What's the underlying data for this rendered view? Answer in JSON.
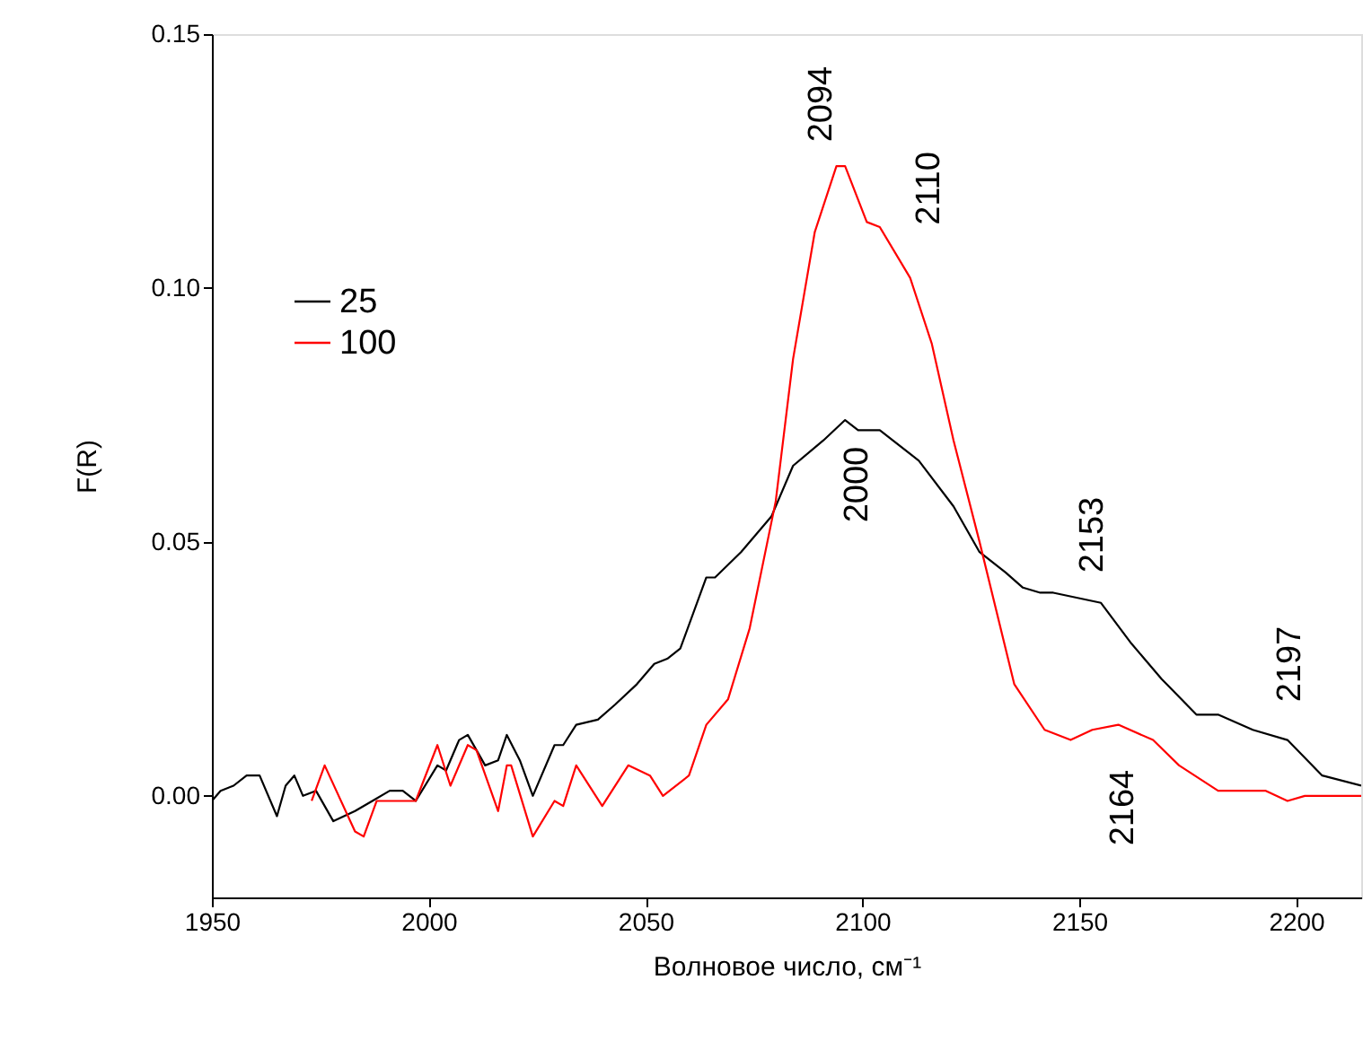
{
  "chart_data": {
    "type": "line",
    "xlabel": "Волновое число, см⁻¹",
    "ylabel": "F(R)",
    "xlim": [
      1950,
      2215
    ],
    "xticks": [
      1950,
      2000,
      2050,
      2100,
      2150,
      2200
    ],
    "ylim": [
      -0.02,
      0.15
    ],
    "yticks": [
      {
        "value": 0,
        "label": "0.00"
      },
      {
        "value": 0.05,
        "label": "0.05"
      },
      {
        "value": 0.1,
        "label": "0.10"
      },
      {
        "value": 0.15,
        "label": "0.15"
      }
    ],
    "grid": false,
    "legend": "top left",
    "marker": "none",
    "line_style": "solid",
    "series": [
      {
        "name": "25",
        "color": "#000000",
        "x": [
          1950,
          1952,
          1955,
          1958,
          1961,
          1965,
          1967,
          1969,
          1971,
          1974,
          1978,
          1983,
          1987,
          1991,
          1994,
          1997,
          2002,
          2004,
          2007,
          2009,
          2013,
          2016,
          2018,
          2021,
          2024,
          2029,
          2031,
          2034,
          2039,
          2043,
          2048,
          2052,
          2055,
          2058,
          2064,
          2066,
          2072,
          2079,
          2084,
          2091,
          2096,
          2099,
          2104,
          2113,
          2121,
          2127,
          2133,
          2137,
          2141,
          2144,
          2155,
          2162,
          2169,
          2177,
          2182,
          2190,
          2198,
          2206,
          2215
        ],
        "values": [
          -0.001,
          0.001,
          0.002,
          0.004,
          0.004,
          -0.004,
          0.002,
          0.004,
          0.0,
          0.001,
          -0.005,
          -0.003,
          -0.001,
          0.001,
          0.001,
          -0.001,
          0.006,
          0.005,
          0.011,
          0.012,
          0.006,
          0.007,
          0.012,
          0.007,
          0.0,
          0.01,
          0.01,
          0.014,
          0.015,
          0.018,
          0.022,
          0.026,
          0.027,
          0.029,
          0.043,
          0.043,
          0.048,
          0.055,
          0.065,
          0.07,
          0.074,
          0.072,
          0.072,
          0.066,
          0.057,
          0.048,
          0.044,
          0.041,
          0.04,
          0.04,
          0.038,
          0.03,
          0.023,
          0.016,
          0.016,
          0.013,
          0.011,
          0.004,
          0.002
        ]
      },
      {
        "name": "100",
        "color": "#ff0000",
        "x": [
          1973,
          1976,
          1983,
          1985,
          1988,
          1993,
          1997,
          2002,
          2005,
          2009,
          2011,
          2016,
          2018,
          2019,
          2024,
          2029,
          2031,
          2034,
          2040,
          2046,
          2051,
          2054,
          2060,
          2064,
          2069,
          2074,
          2080,
          2084,
          2089,
          2094,
          2096,
          2101,
          2104,
          2111,
          2116,
          2121,
          2127,
          2135,
          2142,
          2148,
          2153,
          2159,
          2167,
          2173,
          2182,
          2188,
          2193,
          2198,
          2202,
          2208,
          2215
        ],
        "values": [
          -0.001,
          0.006,
          -0.007,
          -0.008,
          -0.001,
          -0.001,
          -0.001,
          0.01,
          0.002,
          0.01,
          0.009,
          -0.003,
          0.006,
          0.006,
          -0.008,
          -0.001,
          -0.002,
          0.006,
          -0.002,
          0.006,
          0.004,
          0.0,
          0.004,
          0.014,
          0.019,
          0.033,
          0.058,
          0.086,
          0.111,
          0.124,
          0.124,
          0.113,
          0.112,
          0.102,
          0.089,
          0.07,
          0.05,
          0.022,
          0.013,
          0.011,
          0.013,
          0.014,
          0.011,
          0.006,
          0.001,
          0.001,
          0.001,
          -0.001,
          0.0,
          0.0,
          0.0
        ]
      }
    ],
    "annotations": [
      "2094",
      "2110",
      "2000",
      "2153",
      "2197",
      "2164"
    ]
  }
}
